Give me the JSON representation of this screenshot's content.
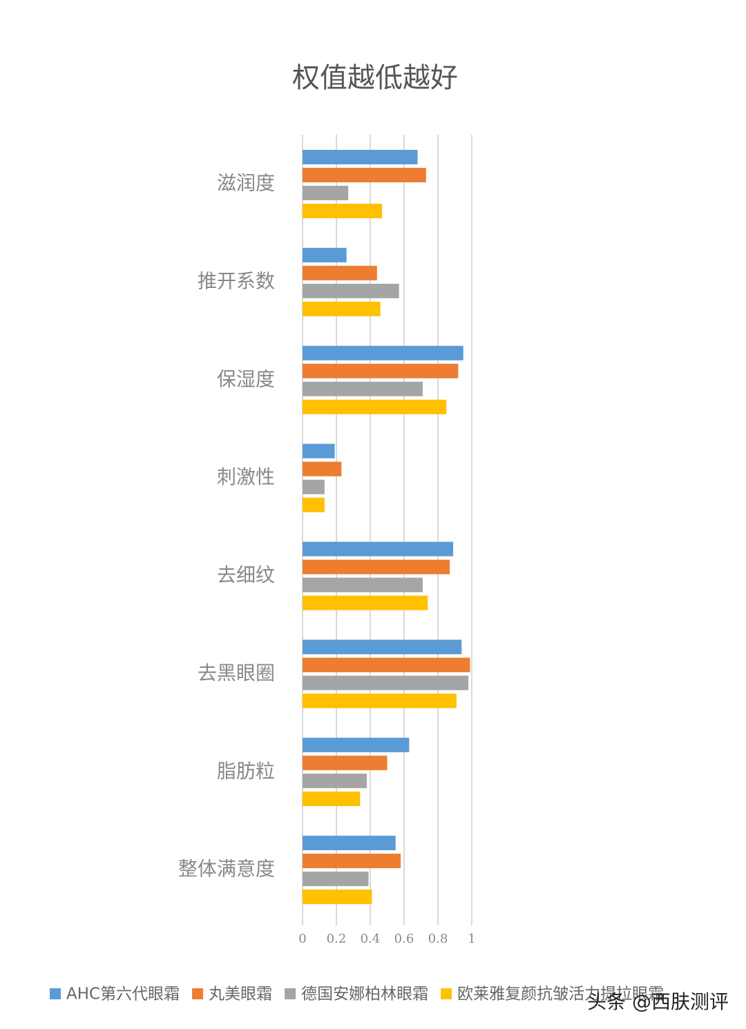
{
  "chart_data": {
    "type": "bar",
    "orientation": "horizontal",
    "title": "权值越低越好",
    "categories": [
      "滋润度",
      "推开系数",
      "保湿度",
      "刺激性",
      "去细纹",
      "去黑眼圈",
      "脂肪粒",
      "整体满意度"
    ],
    "series": [
      {
        "name": "AHC第六代眼霜",
        "color": "#5b9bd5",
        "values": [
          0.68,
          0.26,
          0.95,
          0.19,
          0.89,
          0.94,
          0.63,
          0.55
        ]
      },
      {
        "name": "丸美眼霜",
        "color": "#ed7d31",
        "values": [
          0.73,
          0.44,
          0.92,
          0.23,
          0.87,
          0.99,
          0.5,
          0.58
        ]
      },
      {
        "name": "德国安娜柏林眼霜",
        "color": "#a5a5a5",
        "values": [
          0.27,
          0.57,
          0.71,
          0.13,
          0.71,
          0.98,
          0.38,
          0.39
        ]
      },
      {
        "name": "欧莱雅复颜抗皱活力提拉眼霜",
        "color": "#ffc000",
        "values": [
          0.47,
          0.46,
          0.85,
          0.13,
          0.74,
          0.91,
          0.34,
          0.41
        ]
      }
    ],
    "xlim": [
      0,
      1
    ],
    "xticks": [
      0,
      0.2,
      0.4,
      0.6,
      0.8,
      1
    ],
    "grid": true,
    "watermark": "头条 @西肤测评"
  }
}
